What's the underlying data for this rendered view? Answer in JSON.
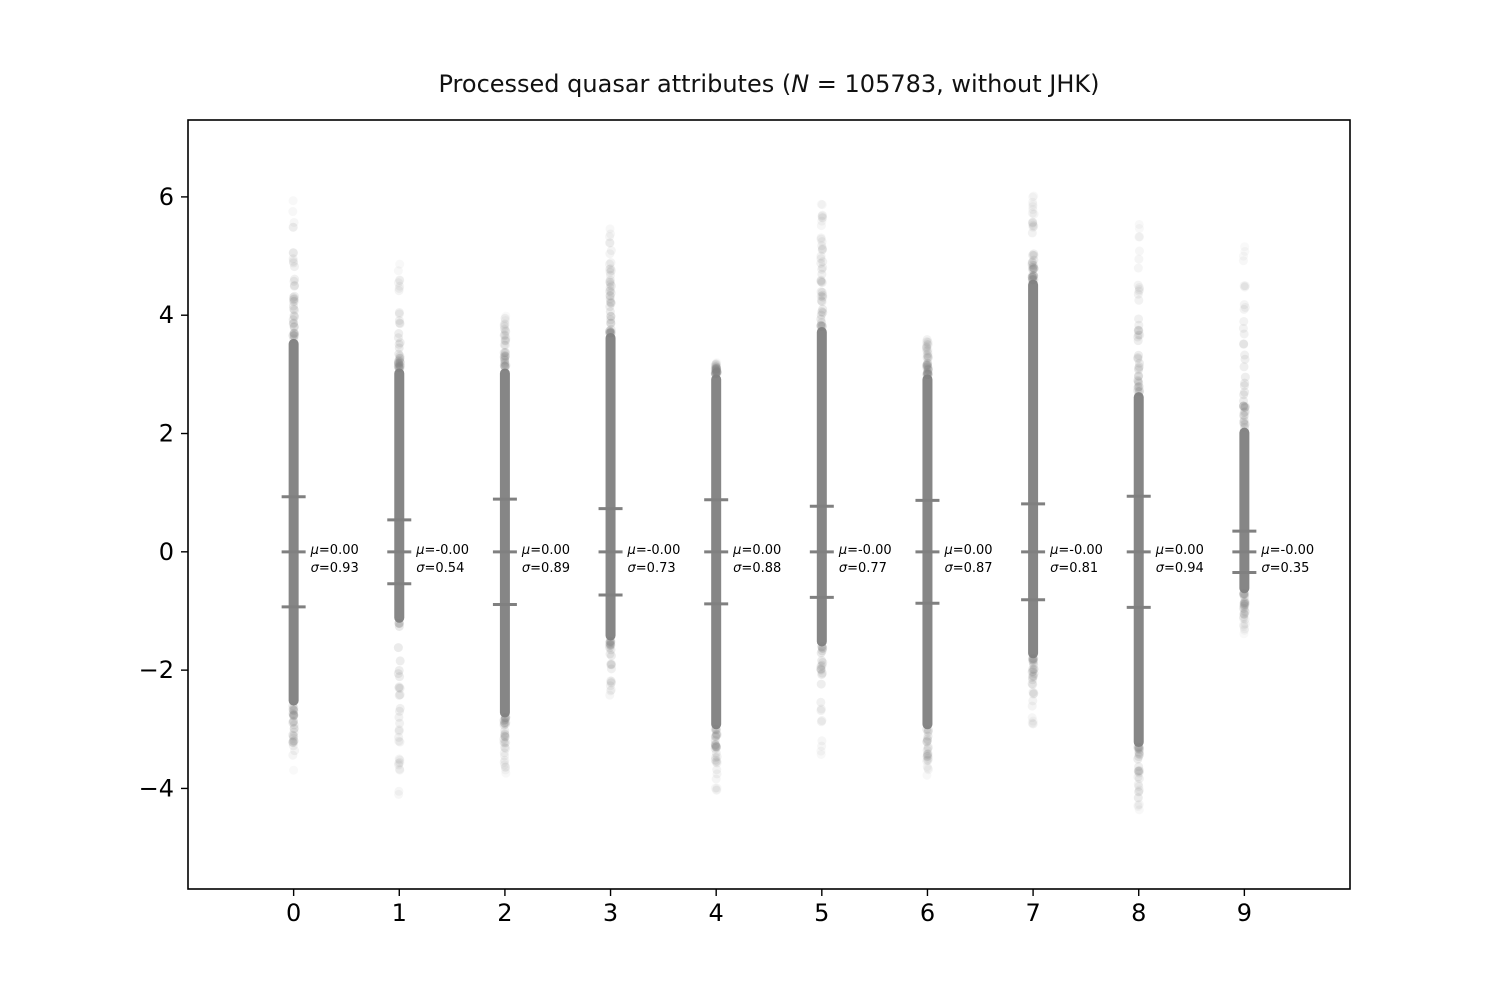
{
  "chart_data": {
    "type": "scatter",
    "title": {
      "prefix": "Processed quasar attributes (",
      "symbol": "N",
      "suffix": " = 105783, without JHK)"
    },
    "xlabel": "",
    "ylabel": "",
    "xlim": [
      -1,
      10
    ],
    "ylim": [
      -5.7,
      7.3
    ],
    "xticks": [
      0,
      1,
      2,
      3,
      4,
      5,
      6,
      7,
      8,
      9
    ],
    "xtick_labels": [
      "0",
      "1",
      "2",
      "3",
      "4",
      "5",
      "6",
      "7",
      "8",
      "9"
    ],
    "yticks": [
      -4,
      -2,
      0,
      2,
      4,
      6
    ],
    "ytick_labels": [
      "−4",
      "−2",
      "0",
      "2",
      "4",
      "6"
    ],
    "grid": false,
    "point_color": "#808080",
    "marker_color": "#808080",
    "mu_symbol": "μ",
    "sigma_symbol": "σ",
    "attributes": [
      {
        "index": 0,
        "mu_text": "=0.00",
        "sigma_text": "=0.93",
        "mean": 0.0,
        "std": 0.93,
        "dense_range": [
          -2.6,
          3.6
        ],
        "sparse_range": [
          -3.7,
          6.0
        ]
      },
      {
        "index": 1,
        "mu_text": "=-0.00",
        "sigma_text": "=0.54",
        "mean": 0.0,
        "std": 0.54,
        "dense_range": [
          -1.2,
          3.1
        ],
        "sparse_range": [
          -4.6,
          5.0
        ]
      },
      {
        "index": 2,
        "mu_text": "=0.00",
        "sigma_text": "=0.89",
        "mean": 0.0,
        "std": 0.89,
        "dense_range": [
          -2.8,
          3.1
        ],
        "sparse_range": [
          -3.8,
          4.0
        ]
      },
      {
        "index": 3,
        "mu_text": "=-0.00",
        "sigma_text": "=0.73",
        "mean": 0.0,
        "std": 0.73,
        "dense_range": [
          -1.5,
          3.7
        ],
        "sparse_range": [
          -2.6,
          5.7
        ]
      },
      {
        "index": 4,
        "mu_text": "=0.00",
        "sigma_text": "=0.88",
        "mean": 0.0,
        "std": 0.88,
        "dense_range": [
          -3.0,
          3.0
        ],
        "sparse_range": [
          -4.1,
          3.2
        ]
      },
      {
        "index": 5,
        "mu_text": "=-0.00",
        "sigma_text": "=0.77",
        "mean": 0.0,
        "std": 0.77,
        "dense_range": [
          -1.6,
          3.8
        ],
        "sparse_range": [
          -3.6,
          6.0
        ]
      },
      {
        "index": 6,
        "mu_text": "=0.00",
        "sigma_text": "=0.87",
        "mean": 0.0,
        "std": 0.87,
        "dense_range": [
          -3.0,
          3.0
        ],
        "sparse_range": [
          -3.8,
          3.6
        ]
      },
      {
        "index": 7,
        "mu_text": "=-0.00",
        "sigma_text": "=0.81",
        "mean": 0.0,
        "std": 0.81,
        "dense_range": [
          -1.8,
          4.6
        ],
        "sparse_range": [
          -3.0,
          6.1
        ]
      },
      {
        "index": 8,
        "mu_text": "=0.00",
        "sigma_text": "=0.94",
        "mean": 0.0,
        "std": 0.94,
        "dense_range": [
          -3.3,
          2.7
        ],
        "sparse_range": [
          -4.4,
          5.6
        ]
      },
      {
        "index": 9,
        "mu_text": "=-0.00",
        "sigma_text": "=0.35",
        "mean": 0.0,
        "std": 0.35,
        "dense_range": [
          -0.7,
          2.1
        ],
        "sparse_range": [
          -1.4,
          5.2
        ]
      }
    ]
  }
}
